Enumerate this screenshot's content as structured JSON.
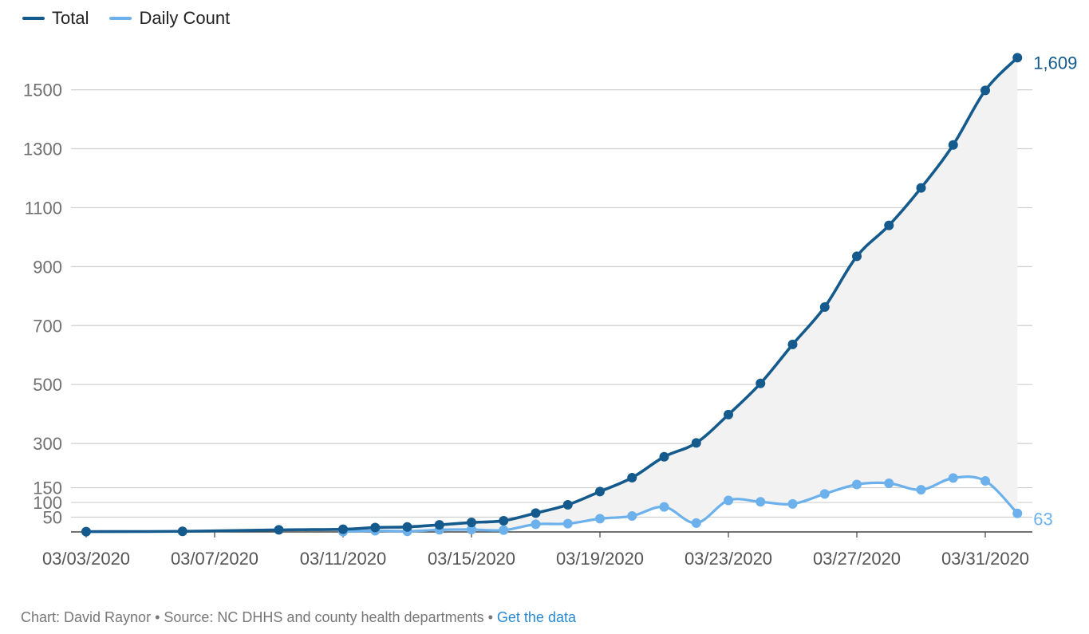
{
  "colors": {
    "total": "#145a8c",
    "daily": "#6db1ec",
    "area": "#f2f2f2",
    "grid": "#cfcfcf",
    "axis_text": "#707070",
    "link": "#2a8ad1"
  },
  "legend": {
    "total_label": "Total",
    "daily_label": "Daily Count"
  },
  "footer": {
    "credit": "Chart: David Raynor",
    "separator": " • ",
    "source": "Source: NC DHHS and county health departments",
    "link_label": "Get the data"
  },
  "chart_data": {
    "type": "line",
    "x": [
      "03/03/2020",
      "03/06/2020",
      "03/09/2020",
      "03/11/2020",
      "03/12/2020",
      "03/13/2020",
      "03/14/2020",
      "03/15/2020",
      "03/16/2020",
      "03/17/2020",
      "03/18/2020",
      "03/19/2020",
      "03/20/2020",
      "03/21/2020",
      "03/22/2020",
      "03/23/2020",
      "03/24/2020",
      "03/25/2020",
      "03/26/2020",
      "03/27/2020",
      "03/28/2020",
      "03/29/2020",
      "03/30/2020",
      "03/31/2020",
      "04/01/2020"
    ],
    "xticks": [
      "03/03/2020",
      "03/07/2020",
      "03/11/2020",
      "03/15/2020",
      "03/19/2020",
      "03/23/2020",
      "03/27/2020",
      "03/31/2020"
    ],
    "yticks": [
      50,
      100,
      150,
      300,
      500,
      700,
      900,
      1100,
      1300,
      1500
    ],
    "ylim": [
      0,
      1650
    ],
    "series": [
      {
        "name": "Total",
        "values": [
          1,
          2,
          7,
          9,
          15,
          17,
          24,
          32,
          38,
          64,
          92,
          137,
          184,
          255,
          302,
          398,
          504,
          636,
          763,
          935,
          1040,
          1167,
          1313,
          1498,
          1609
        ],
        "end_label": "1,609"
      },
      {
        "name": "Daily Count",
        "values": [
          null,
          null,
          null,
          1,
          4,
          2,
          7,
          8,
          6,
          26,
          28,
          45,
          54,
          85,
          30,
          107,
          102,
          95,
          129,
          161,
          165,
          143,
          183,
          173,
          63
        ],
        "end_label": "63"
      }
    ]
  }
}
